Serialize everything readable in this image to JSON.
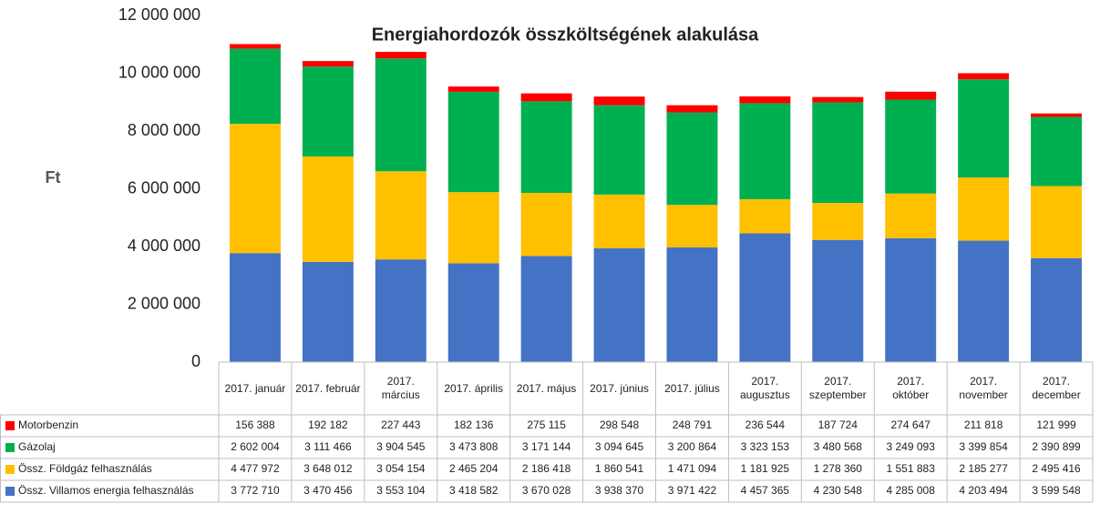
{
  "chart_data": {
    "type": "stacked_bar",
    "title": "Energiahordozók összköltségének alakulása",
    "y_label": "Ft",
    "categories": [
      "2017. január",
      "2017. február",
      "2017. március",
      "2017. április",
      "2017. május",
      "2017. június",
      "2017. július",
      "2017. augusztus",
      "2017. szeptember",
      "2017. október",
      "2017. november",
      "2017. december"
    ],
    "series": [
      {
        "name": "Össz. Villamos energia felhasználás",
        "color": "#4472c4",
        "values": [
          3772710,
          3470456,
          3553104,
          3418582,
          3670028,
          3938370,
          3971422,
          4457365,
          4230548,
          4285008,
          4203494,
          3599548
        ],
        "value_labels": [
          "3 772 710",
          "3 470 456",
          "3 553 104",
          "3 418 582",
          "3 670 028",
          "3 938 370",
          "3 971 422",
          "4 457 365",
          "4 230 548",
          "4 285 008",
          "4 203 494",
          "3 599 548"
        ]
      },
      {
        "name": "Össz. Földgáz felhasználás",
        "color": "#ffc000",
        "values": [
          4477972,
          3648012,
          3054154,
          2465204,
          2186418,
          1860541,
          1471094,
          1181925,
          1278360,
          1551883,
          2185277,
          2495416
        ],
        "value_labels": [
          "4 477 972",
          "3 648 012",
          "3 054 154",
          "2 465 204",
          "2 186 418",
          "1 860 541",
          "1 471 094",
          "1 181 925",
          "1 278 360",
          "1 551 883",
          "2 185 277",
          "2 495 416"
        ]
      },
      {
        "name": "Gázolaj",
        "color": "#00b050",
        "values": [
          2602004,
          3111466,
          3904545,
          3473808,
          3171144,
          3094645,
          3200864,
          3323153,
          3480568,
          3249093,
          3399854,
          2390899
        ],
        "value_labels": [
          "2 602 004",
          "3 111 466",
          "3 904 545",
          "3 473 808",
          "3 171 144",
          "3 094 645",
          "3 200 864",
          "3 323 153",
          "3 480 568",
          "3 249 093",
          "3 399 854",
          "2 390 899"
        ]
      },
      {
        "name": "Motorbenzin",
        "color": "#ff0000",
        "values": [
          156388,
          192182,
          227443,
          182136,
          275115,
          298548,
          248791,
          236544,
          187724,
          274647,
          211818,
          121999
        ],
        "value_labels": [
          "156 388",
          "192 182",
          "227 443",
          "182 136",
          "275 115",
          "298 548",
          "248 791",
          "236 544",
          "187 724",
          "274 647",
          "211 818",
          "121 999"
        ]
      }
    ],
    "ylim": [
      0,
      12000000
    ],
    "yticks": [
      0,
      {
        "value": 2000000,
        "label": "2 000 000"
      },
      {
        "value": 4000000,
        "label": "4 000 000"
      },
      {
        "value": 6000000,
        "label": "6 000 000"
      },
      {
        "value": 8000000,
        "label": "8 000 000"
      },
      {
        "value": 10000000,
        "label": "10 000 000"
      },
      {
        "value": 12000000,
        "label": "12 000 000"
      }
    ],
    "grid": false
  }
}
